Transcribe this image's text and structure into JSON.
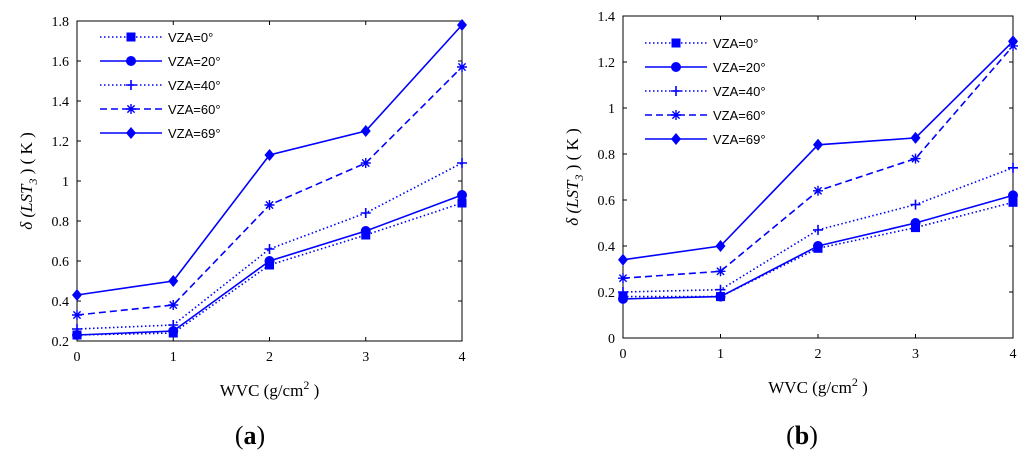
{
  "chart_data": [
    {
      "type": "line",
      "panel_label": [
        "(",
        "a",
        ")"
      ],
      "xlabel_prefix": "WVC (g/cm",
      "xlabel_sup": "2",
      "xlabel_suffix": " )",
      "ylabel_parts": [
        "δ (",
        "LST",
        "3",
        " ) ( K )"
      ],
      "x": [
        0,
        1,
        2,
        3,
        4
      ],
      "xlim": [
        0,
        4
      ],
      "ylim": [
        0.2,
        1.8
      ],
      "xticks": [
        "0",
        "1",
        "2",
        "3",
        "4"
      ],
      "yticks": [
        "0.2",
        "0.4",
        "0.6",
        "0.8",
        "1",
        "1.2",
        "1.4",
        "1.6",
        "1.8"
      ],
      "legend_position": "top-left",
      "series": [
        {
          "name": "VZA=0°",
          "values": [
            0.23,
            0.24,
            0.58,
            0.73,
            0.89
          ],
          "color": "#0000ff",
          "dash": "dotted",
          "marker": "square"
        },
        {
          "name": "VZA=20°",
          "values": [
            0.23,
            0.25,
            0.6,
            0.75,
            0.93
          ],
          "color": "#0000ff",
          "dash": "solid",
          "marker": "circle"
        },
        {
          "name": "VZA=40°",
          "values": [
            0.26,
            0.28,
            0.66,
            0.84,
            1.09
          ],
          "color": "#0000ff",
          "dash": "dotted",
          "marker": "plus"
        },
        {
          "name": "VZA=60°",
          "values": [
            0.33,
            0.38,
            0.88,
            1.09,
            1.57
          ],
          "color": "#0000ff",
          "dash": "dashed",
          "marker": "star"
        },
        {
          "name": "VZA=69°",
          "values": [
            0.43,
            0.5,
            1.13,
            1.25,
            1.78
          ],
          "color": "#0000ff",
          "dash": "solid",
          "marker": "diamond"
        }
      ]
    },
    {
      "type": "line",
      "panel_label": [
        "(",
        "b",
        ")"
      ],
      "xlabel_prefix": "WVC (g/cm",
      "xlabel_sup": "2",
      "xlabel_suffix": " )",
      "ylabel_parts": [
        "δ (",
        "LST",
        "3",
        " ) ( K )"
      ],
      "x": [
        0,
        1,
        2,
        3,
        4
      ],
      "xlim": [
        0,
        4
      ],
      "ylim": [
        0,
        1.4
      ],
      "xticks": [
        "0",
        "1",
        "2",
        "3",
        "4"
      ],
      "yticks": [
        "0",
        "0.2",
        "0.4",
        "0.6",
        "0.8",
        "1",
        "1.2",
        "1.4"
      ],
      "legend_position": "top-left",
      "series": [
        {
          "name": "VZA=0°",
          "values": [
            0.18,
            0.18,
            0.39,
            0.48,
            0.59
          ],
          "color": "#0000ff",
          "dash": "dotted",
          "marker": "square"
        },
        {
          "name": "VZA=20°",
          "values": [
            0.17,
            0.18,
            0.4,
            0.5,
            0.62
          ],
          "color": "#0000ff",
          "dash": "solid",
          "marker": "circle"
        },
        {
          "name": "VZA=40°",
          "values": [
            0.2,
            0.21,
            0.47,
            0.58,
            0.74
          ],
          "color": "#0000ff",
          "dash": "dotted",
          "marker": "plus"
        },
        {
          "name": "VZA=60°",
          "values": [
            0.26,
            0.29,
            0.64,
            0.78,
            1.27
          ],
          "color": "#0000ff",
          "dash": "dashed",
          "marker": "star"
        },
        {
          "name": "VZA=69°",
          "values": [
            0.34,
            0.4,
            0.84,
            0.87,
            1.29
          ],
          "color": "#0000ff",
          "dash": "solid",
          "marker": "diamond"
        }
      ]
    }
  ]
}
